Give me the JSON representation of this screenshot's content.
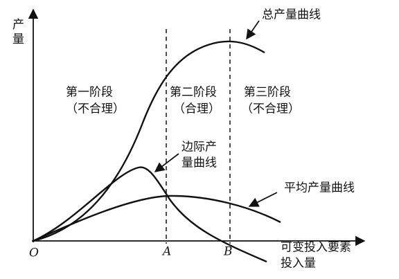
{
  "diagram": {
    "y_axis_label": "产量",
    "x_axis_label": [
      "可变投入要素",
      "投入量"
    ],
    "origin": "O",
    "points": [
      "A",
      "B"
    ],
    "curves": {
      "total": "总产量曲线",
      "marginal": [
        "边际产",
        "量曲线"
      ],
      "average": "平均产量曲线"
    },
    "stages": [
      {
        "name": "第一阶段",
        "note": "（不合理）"
      },
      {
        "name": "第二阶段",
        "note": "（合理）"
      },
      {
        "name": "第三阶段",
        "note": "（不合理）"
      }
    ]
  }
}
